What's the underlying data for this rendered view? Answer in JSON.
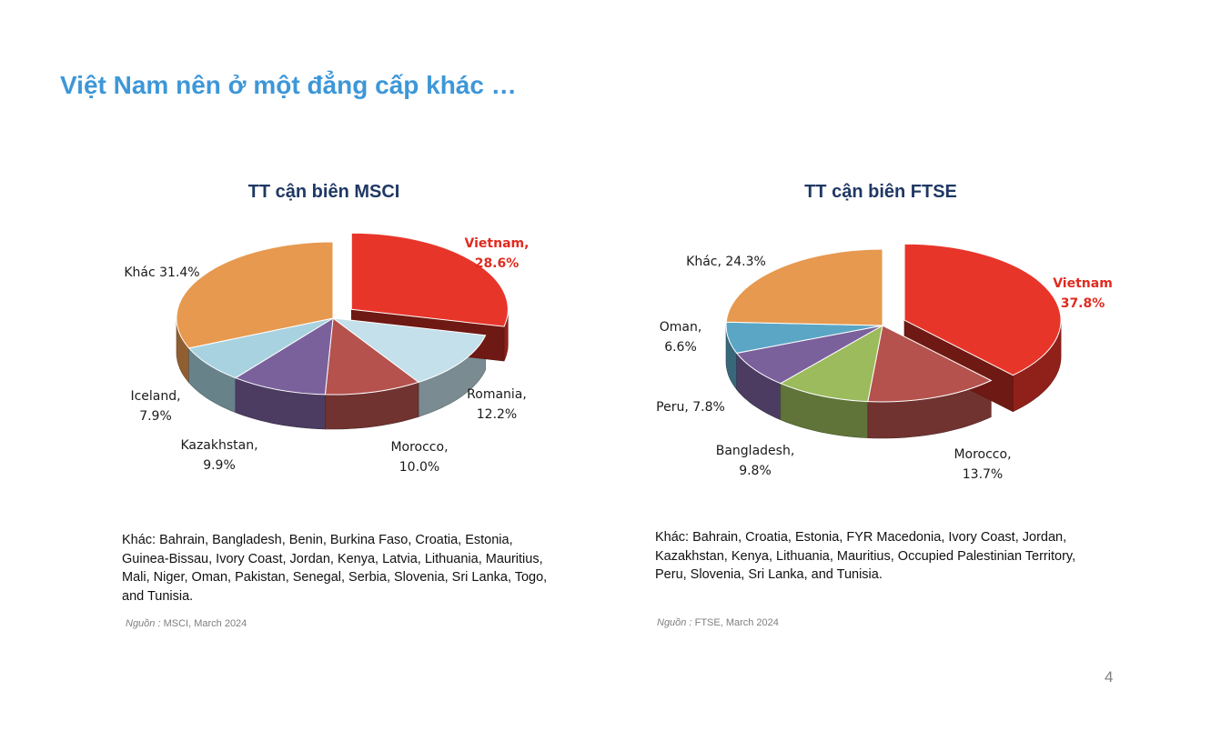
{
  "slide": {
    "title": "Việt Nam nên ở một đẳng cấp khác …",
    "page_number": "4"
  },
  "chart_data": [
    {
      "type": "pie",
      "title": "TT cận biên MSCI",
      "slices": [
        {
          "label": "Vietnam",
          "label_lines": [
            "Vietnam,",
            "28.6%"
          ],
          "value": 28.6,
          "color": "#e8352a",
          "highlight": true,
          "exploded": true
        },
        {
          "label": "Romania",
          "label_lines": [
            "Romania,",
            "12.2%"
          ],
          "value": 12.2,
          "color": "#c4e0ea"
        },
        {
          "label": "Morocco",
          "label_lines": [
            "Morocco,",
            "10.0%"
          ],
          "value": 10.0,
          "color": "#b5524d"
        },
        {
          "label": "Kazakhstan",
          "label_lines": [
            "Kazakhstan,",
            "9.9%"
          ],
          "value": 9.9,
          "color": "#7a619c"
        },
        {
          "label": "Iceland",
          "label_lines": [
            "Iceland,",
            "7.9%"
          ],
          "value": 7.9,
          "color": "#a8d2df"
        },
        {
          "label": "Khác",
          "label_lines": [
            "Khác 31.4%"
          ],
          "value": 31.4,
          "color": "#e6994f"
        }
      ],
      "note": "Khác: Bahrain, Bangladesh, Benin, Burkina Faso, Croatia, Estonia, Guinea-Bissau, Ivory Coast, Jordan, Kenya, Latvia, Lithuania, Mauritius, Mali, Niger, Oman, Pakistan, Senegal, Serbia, Slovenia, Sri Lanka, Togo, and Tunisia.",
      "source_label": "Nguồn :",
      "source": "MSCI, March 2024"
    },
    {
      "type": "pie",
      "title": "TT cận biên FTSE",
      "slices": [
        {
          "label": "Vietnam",
          "label_lines": [
            "Vietnam",
            "37.8%"
          ],
          "value": 37.8,
          "color": "#e8352a",
          "highlight": true,
          "exploded": true
        },
        {
          "label": "Morocco",
          "label_lines": [
            "Morocco,",
            "13.7%"
          ],
          "value": 13.7,
          "color": "#b5524d"
        },
        {
          "label": "Bangladesh",
          "label_lines": [
            "Bangladesh,",
            "9.8%"
          ],
          "value": 9.8,
          "color": "#9bbb5c"
        },
        {
          "label": "Peru",
          "label_lines": [
            "Peru, 7.8%"
          ],
          "value": 7.8,
          "color": "#7a619c"
        },
        {
          "label": "Oman",
          "label_lines": [
            "Oman,",
            "6.6%"
          ],
          "value": 6.6,
          "color": "#5ba6c5"
        },
        {
          "label": "Khác",
          "label_lines": [
            "Khác, 24.3%"
          ],
          "value": 24.3,
          "color": "#e6994f"
        }
      ],
      "note": "Khác: Bahrain, Croatia, Estonia, FYR Macedonia, Ivory Coast, Jordan, Kazakhstan, Kenya, Lithuania, Mauritius, Occupied Palestinian Territory, Peru, Slovenia, Sri Lanka, and Tunisia.",
      "source_label": "Nguồn :",
      "source": "FTSE, March 2024"
    }
  ]
}
